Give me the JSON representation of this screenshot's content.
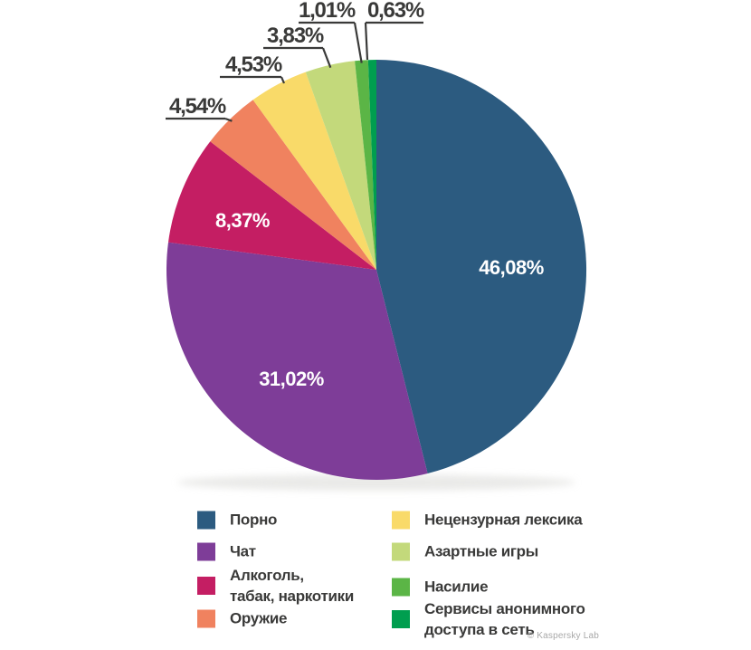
{
  "chart_data": {
    "type": "pie",
    "title": "",
    "unit": "%",
    "direction": "clockwise",
    "start_angle_deg": 0,
    "legend_position": "bottom",
    "slices": [
      {
        "id": "porno",
        "label": "Порно",
        "value": 46.08,
        "display": "46,08%",
        "color": "#2c5b80",
        "label_placement": "inside"
      },
      {
        "id": "chat",
        "label": "Чат",
        "value": 31.02,
        "display": "31,02%",
        "color": "#7e3d98",
        "label_placement": "inside"
      },
      {
        "id": "alcohol-tobacco-drugs",
        "label": "Алкоголь, табак, наркотики",
        "value": 8.37,
        "display": "8,37%",
        "color": "#c41e63",
        "label_placement": "inside"
      },
      {
        "id": "weapons",
        "label": "Оружие",
        "value": 4.54,
        "display": "4,54%",
        "color": "#f0825f",
        "label_placement": "outside"
      },
      {
        "id": "profanity",
        "label": "Нецензурная лексика",
        "value": 4.53,
        "display": "4,53%",
        "color": "#f9da69",
        "label_placement": "outside"
      },
      {
        "id": "gambling",
        "label": "Азартные игры",
        "value": 3.83,
        "display": "3,83%",
        "color": "#c3d97b",
        "label_placement": "outside"
      },
      {
        "id": "violence",
        "label": "Насилие",
        "value": 1.01,
        "display": "1,01%",
        "color": "#5bb546",
        "label_placement": "outside"
      },
      {
        "id": "anonymous-access",
        "label": "Сервисы анонимного доступа в сеть",
        "value": 0.63,
        "display": "0,63%",
        "color": "#009e4f",
        "label_placement": "outside"
      }
    ]
  },
  "legend": {
    "columns": [
      [
        {
          "id": "porno",
          "label": "Порно",
          "color": "#2c5b80"
        },
        {
          "id": "chat",
          "label": "Чат",
          "color": "#7e3d98"
        },
        {
          "id": "alcohol-tobacco-drugs",
          "label": "Алкоголь,\nтабак, наркотики",
          "color": "#c41e63"
        },
        {
          "id": "weapons",
          "label": "Оружие",
          "color": "#f0825f"
        }
      ],
      [
        {
          "id": "profanity",
          "label": "Нецензурная лексика",
          "color": "#f9da69"
        },
        {
          "id": "gambling",
          "label": "Азартные игры",
          "color": "#c3d97b"
        },
        {
          "id": "violence",
          "label": "Насилие",
          "color": "#5bb546"
        },
        {
          "id": "anonymous-access",
          "label": "Сервисы анонимного\nдоступа в сеть",
          "color": "#009e4f"
        }
      ]
    ]
  },
  "footer": {
    "copyright": "© Kaspersky Lab"
  }
}
